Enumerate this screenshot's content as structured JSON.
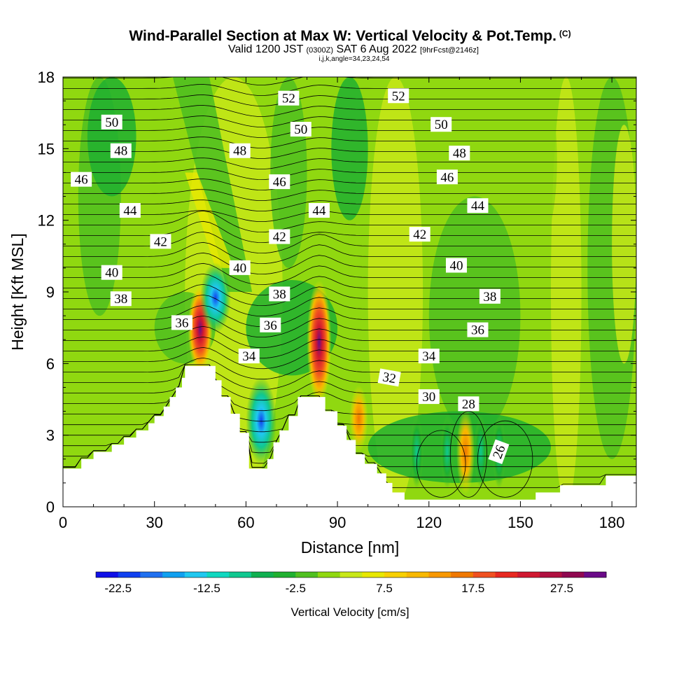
{
  "header": {
    "title": "Wind-Parallel Section at Max W: Vertical Velocity & Pot.Temp.",
    "title_mark": "(C)",
    "valid_prefix": "Valid 1200 JST",
    "valid_utc": "(0300Z)",
    "valid_date": "SAT 6 Aug 2022",
    "valid_fcst": "[9hrFcst@2146z]",
    "indices": "i,j,k,angle=34,23,24,54"
  },
  "chart_data": {
    "type": "heatmap",
    "xlabel": "Distance [nm]",
    "ylabel": "Height [Kft MSL]",
    "xlim": [
      0,
      188
    ],
    "ylim": [
      0,
      18
    ],
    "x_ticks": [
      0,
      30,
      60,
      90,
      120,
      150,
      180
    ],
    "y_ticks": [
      0,
      3,
      6,
      9,
      12,
      15,
      18
    ],
    "colorbar": {
      "label": "Vertical Velocity [cm/s]",
      "tick_labels": [
        "-22.5",
        "-12.5",
        "-2.5",
        "7.5",
        "17.5",
        "27.5"
      ],
      "colors": [
        "#1010e8",
        "#1040f0",
        "#2070f0",
        "#10a0f0",
        "#20c8f0",
        "#10d8c0",
        "#10c890",
        "#10b050",
        "#20b030",
        "#50c020",
        "#90d810",
        "#c8e818",
        "#e8e800",
        "#f8d000",
        "#f8b800",
        "#f89800",
        "#f07800",
        "#f05020",
        "#e82820",
        "#d01830",
        "#b01040",
        "#900850",
        "#6a0a88"
      ]
    },
    "terrain_profile": [
      [
        0,
        1.6
      ],
      [
        6,
        1.6
      ],
      [
        6,
        2.0
      ],
      [
        10,
        2.0
      ],
      [
        10,
        2.3
      ],
      [
        16,
        2.3
      ],
      [
        16,
        2.6
      ],
      [
        20,
        2.6
      ],
      [
        20,
        2.9
      ],
      [
        24,
        2.9
      ],
      [
        24,
        3.2
      ],
      [
        28,
        3.2
      ],
      [
        28,
        3.5
      ],
      [
        30,
        3.5
      ],
      [
        30,
        3.8
      ],
      [
        33,
        3.8
      ],
      [
        33,
        4.2
      ],
      [
        35,
        4.2
      ],
      [
        35,
        4.6
      ],
      [
        37,
        4.6
      ],
      [
        37,
        5.0
      ],
      [
        39,
        5.0
      ],
      [
        39,
        5.4
      ],
      [
        40,
        5.4
      ],
      [
        40,
        5.9
      ],
      [
        50,
        5.9
      ],
      [
        50,
        5.3
      ],
      [
        52,
        5.3
      ],
      [
        52,
        4.6
      ],
      [
        55,
        4.6
      ],
      [
        55,
        3.9
      ],
      [
        58,
        3.9
      ],
      [
        58,
        3.1
      ],
      [
        61,
        3.1
      ],
      [
        61,
        1.6
      ],
      [
        67,
        1.6
      ],
      [
        67,
        2.0
      ],
      [
        69,
        2.0
      ],
      [
        69,
        2.7
      ],
      [
        71,
        2.7
      ],
      [
        71,
        3.2
      ],
      [
        74,
        3.2
      ],
      [
        74,
        3.8
      ],
      [
        77,
        3.8
      ],
      [
        77,
        4.6
      ],
      [
        86,
        4.6
      ],
      [
        86,
        4.0
      ],
      [
        90,
        4.0
      ],
      [
        90,
        3.4
      ],
      [
        93,
        3.4
      ],
      [
        93,
        2.8
      ],
      [
        96,
        2.8
      ],
      [
        96,
        2.2
      ],
      [
        99,
        2.2
      ],
      [
        99,
        1.8
      ],
      [
        103,
        1.8
      ],
      [
        103,
        1.4
      ],
      [
        106,
        1.4
      ],
      [
        106,
        1.0
      ],
      [
        108,
        1.0
      ],
      [
        108,
        0.6
      ],
      [
        112,
        0.6
      ],
      [
        112,
        0.3
      ],
      [
        155,
        0.3
      ],
      [
        155,
        0.6
      ],
      [
        163,
        0.6
      ],
      [
        163,
        0.9
      ],
      [
        178,
        0.9
      ],
      [
        178,
        1.3
      ],
      [
        188,
        1.3
      ]
    ],
    "series": [
      {
        "name": "26",
        "label_pos": [
          143,
          2.3
        ]
      },
      {
        "name": "28",
        "label_pos": [
          133,
          4.3
        ]
      },
      {
        "name": "30",
        "label_pos": [
          120,
          4.6
        ]
      },
      {
        "name": "32",
        "label_pos": [
          107,
          5.4
        ]
      },
      {
        "name": "34",
        "label_pos": [
          61,
          6.3
        ],
        "label_pos2": [
          120,
          6.3
        ]
      },
      {
        "name": "36",
        "label_pos": [
          39,
          7.7
        ],
        "label_pos2": [
          68,
          7.6
        ],
        "label_pos3": [
          136,
          7.4
        ]
      },
      {
        "name": "38",
        "label_pos": [
          19,
          8.7
        ],
        "label_pos2": [
          71,
          8.9
        ],
        "label_pos3": [
          140,
          8.8
        ]
      },
      {
        "name": "40",
        "label_pos": [
          16,
          9.8
        ],
        "label_pos2": [
          58,
          10.0
        ],
        "label_pos3": [
          129,
          10.1
        ]
      },
      {
        "name": "42",
        "label_pos": [
          32,
          11.1
        ],
        "label_pos2": [
          71,
          11.3
        ],
        "label_pos3": [
          117,
          11.4
        ]
      },
      {
        "name": "44",
        "label_pos": [
          22,
          12.4
        ],
        "label_pos2": [
          84,
          12.4
        ],
        "label_pos3": [
          136,
          12.6
        ]
      },
      {
        "name": "46",
        "label_pos": [
          6,
          13.7
        ],
        "label_pos2": [
          71,
          13.6
        ],
        "label_pos3": [
          126,
          13.8
        ]
      },
      {
        "name": "48",
        "label_pos": [
          19,
          14.9
        ],
        "label_pos2": [
          58,
          14.9
        ],
        "label_pos3": [
          130,
          14.8
        ]
      },
      {
        "name": "50",
        "label_pos": [
          16,
          16.1
        ],
        "label_pos2": [
          78,
          15.8
        ],
        "label_pos3": [
          124,
          16.0
        ]
      },
      {
        "name": "52",
        "label_pos": [
          74,
          17.1
        ],
        "label_pos2": [
          110,
          17.2
        ]
      }
    ],
    "updrafts": [
      {
        "x": 45,
        "y_bottom": 5.9,
        "y_top": 9.0,
        "w_max": 28
      },
      {
        "x": 84,
        "y_bottom": 4.6,
        "y_top": 9.2,
        "w_max": 30
      },
      {
        "x": 97,
        "y_bottom": 2.6,
        "y_top": 4.8,
        "w_max": 14
      },
      {
        "x": 132,
        "y_bottom": 0.8,
        "y_top": 3.8,
        "w_max": 10
      }
    ],
    "downdrafts": [
      {
        "x": 50,
        "y_bottom": 7.5,
        "y_top": 10.0,
        "w_min": -18
      },
      {
        "x": 65,
        "y_bottom": 2.0,
        "y_top": 5.2,
        "w_min": -14
      },
      {
        "x": 116,
        "y_bottom": 1.0,
        "y_top": 3.6,
        "w_min": -6
      },
      {
        "x": 126,
        "y_bottom": 1.0,
        "y_top": 3.6,
        "w_min": -6
      },
      {
        "x": 137,
        "y_bottom": 1.0,
        "y_top": 3.6,
        "w_min": -6
      },
      {
        "x": 143,
        "y_bottom": 1.0,
        "y_top": 3.6,
        "w_min": -6
      }
    ]
  }
}
